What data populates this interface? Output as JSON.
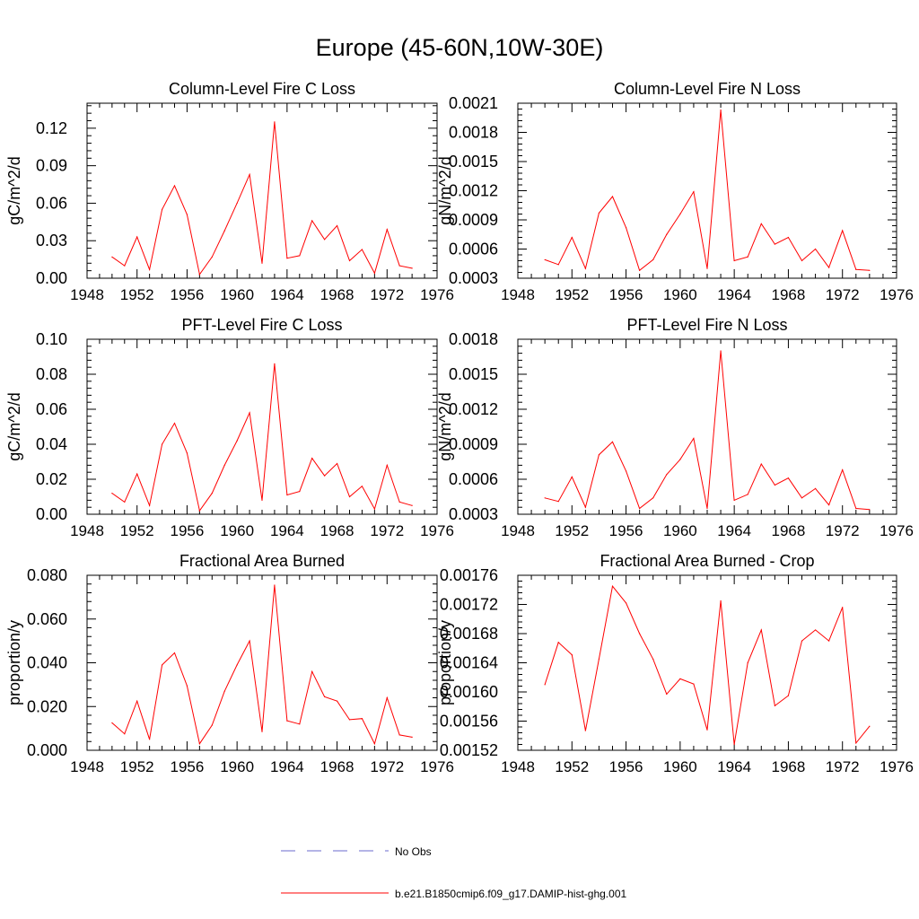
{
  "title": "Europe (45-60N,10W-30E)",
  "legend": [
    {
      "label": "No Obs",
      "color": "#6a6acd",
      "dash": true
    },
    {
      "label": "b.e21.B1850cmip6.f09_g17.DAMIP-hist-ghg.001",
      "color": "#ff0000",
      "dash": false
    }
  ],
  "chart_data": [
    {
      "type": "line",
      "title": "Column-Level Fire C Loss",
      "ylabel": "gC/m^2/d",
      "xlim": [
        1948,
        1976
      ],
      "x_ticks": [
        "1948",
        "1952",
        "1956",
        "1960",
        "1964",
        "1968",
        "1972",
        "1976"
      ],
      "ylim": [
        0,
        0.14
      ],
      "y_ticks": [
        "0.00",
        "0.03",
        "0.06",
        "0.09",
        "0.12"
      ],
      "grid": false,
      "series": [
        {
          "color": "#ff0000",
          "x": [
            1950,
            1951,
            1952,
            1953,
            1954,
            1955,
            1956,
            1957,
            1958,
            1959,
            1960,
            1961,
            1962,
            1963,
            1964,
            1965,
            1966,
            1967,
            1968,
            1969,
            1970,
            1971,
            1972,
            1973,
            1974
          ],
          "y": [
            0.017,
            0.01,
            0.033,
            0.007,
            0.055,
            0.074,
            0.051,
            0.003,
            0.017,
            0.038,
            0.06,
            0.083,
            0.012,
            0.125,
            0.016,
            0.018,
            0.046,
            0.031,
            0.042,
            0.014,
            0.023,
            0.004,
            0.039,
            0.01,
            0.008
          ]
        }
      ]
    },
    {
      "type": "line",
      "title": "Column-Level Fire N Loss",
      "ylabel": "gN/m^2/d",
      "xlim": [
        1948,
        1976
      ],
      "x_ticks": [
        "1948",
        "1952",
        "1956",
        "1960",
        "1964",
        "1968",
        "1972",
        "1976"
      ],
      "ylim": [
        0.0003,
        0.0021
      ],
      "y_ticks": [
        "0.0003",
        "0.0006",
        "0.0009",
        "0.0012",
        "0.0015",
        "0.0018",
        "0.0021"
      ],
      "grid": false,
      "series": [
        {
          "color": "#ff0000",
          "x": [
            1950,
            1951,
            1952,
            1953,
            1954,
            1955,
            1956,
            1957,
            1958,
            1959,
            1960,
            1961,
            1962,
            1963,
            1964,
            1965,
            1966,
            1967,
            1968,
            1969,
            1970,
            1971,
            1972,
            1973,
            1974
          ],
          "y": [
            0.00049,
            0.00044,
            0.00072,
            0.0004,
            0.00097,
            0.00114,
            0.00082,
            0.00038,
            0.00049,
            0.00075,
            0.00096,
            0.00119,
            0.0004,
            0.00203,
            0.00048,
            0.00052,
            0.00086,
            0.00065,
            0.00072,
            0.00048,
            0.0006,
            0.00041,
            0.00079,
            0.00039,
            0.00038
          ]
        }
      ]
    },
    {
      "type": "line",
      "title": "PFT-Level Fire C Loss",
      "ylabel": "gC/m^2/d",
      "xlim": [
        1948,
        1976
      ],
      "x_ticks": [
        "1948",
        "1952",
        "1956",
        "1960",
        "1964",
        "1968",
        "1972",
        "1976"
      ],
      "ylim": [
        0,
        0.1
      ],
      "y_ticks": [
        "0.00",
        "0.02",
        "0.04",
        "0.06",
        "0.08",
        "0.10"
      ],
      "grid": false,
      "series": [
        {
          "color": "#ff0000",
          "x": [
            1950,
            1951,
            1952,
            1953,
            1954,
            1955,
            1956,
            1957,
            1958,
            1959,
            1960,
            1961,
            1962,
            1963,
            1964,
            1965,
            1966,
            1967,
            1968,
            1969,
            1970,
            1971,
            1972,
            1973,
            1974
          ],
          "y": [
            0.012,
            0.007,
            0.023,
            0.005,
            0.04,
            0.052,
            0.035,
            0.002,
            0.012,
            0.028,
            0.042,
            0.058,
            0.008,
            0.086,
            0.011,
            0.013,
            0.032,
            0.022,
            0.029,
            0.01,
            0.016,
            0.003,
            0.028,
            0.007,
            0.005
          ]
        }
      ]
    },
    {
      "type": "line",
      "title": "PFT-Level Fire N Loss",
      "ylabel": "gN/m^2/d",
      "xlim": [
        1948,
        1976
      ],
      "x_ticks": [
        "1948",
        "1952",
        "1956",
        "1960",
        "1964",
        "1968",
        "1972",
        "1976"
      ],
      "ylim": [
        0.0003,
        0.0018
      ],
      "y_ticks": [
        "0.0003",
        "0.0006",
        "0.0009",
        "0.0012",
        "0.0015",
        "0.0018"
      ],
      "grid": false,
      "series": [
        {
          "color": "#ff0000",
          "x": [
            1950,
            1951,
            1952,
            1953,
            1954,
            1955,
            1956,
            1957,
            1958,
            1959,
            1960,
            1961,
            1962,
            1963,
            1964,
            1965,
            1966,
            1967,
            1968,
            1969,
            1970,
            1971,
            1972,
            1973,
            1974
          ],
          "y": [
            0.00044,
            0.00041,
            0.00062,
            0.00036,
            0.00081,
            0.00092,
            0.00067,
            0.00035,
            0.00044,
            0.00064,
            0.00077,
            0.00095,
            0.00035,
            0.0017,
            0.00042,
            0.00047,
            0.00073,
            0.00055,
            0.00061,
            0.00044,
            0.00052,
            0.00038,
            0.00068,
            0.00035,
            0.00034
          ]
        }
      ]
    },
    {
      "type": "line",
      "title": "Fractional Area Burned",
      "ylabel": "proportion/y",
      "xlim": [
        1948,
        1976
      ],
      "x_ticks": [
        "1948",
        "1952",
        "1956",
        "1960",
        "1964",
        "1968",
        "1972",
        "1976"
      ],
      "ylim": [
        0,
        0.08
      ],
      "y_ticks": [
        "0.000",
        "0.020",
        "0.040",
        "0.060",
        "0.080"
      ],
      "grid": false,
      "series": [
        {
          "color": "#ff0000",
          "x": [
            1950,
            1951,
            1952,
            1953,
            1954,
            1955,
            1956,
            1957,
            1958,
            1959,
            1960,
            1961,
            1962,
            1963,
            1964,
            1965,
            1966,
            1967,
            1968,
            1969,
            1970,
            1971,
            1972,
            1973,
            1974
          ],
          "y": [
            0.0125,
            0.0075,
            0.0225,
            0.005,
            0.039,
            0.0445,
            0.0295,
            0.003,
            0.0115,
            0.027,
            0.039,
            0.05,
            0.0085,
            0.0755,
            0.0135,
            0.012,
            0.036,
            0.0245,
            0.0225,
            0.014,
            0.0145,
            0.003,
            0.024,
            0.007,
            0.006
          ]
        }
      ]
    },
    {
      "type": "line",
      "title": "Fractional Area Burned - Crop",
      "ylabel": "proportion/y",
      "xlim": [
        1948,
        1976
      ],
      "x_ticks": [
        "1948",
        "1952",
        "1956",
        "1960",
        "1964",
        "1968",
        "1972",
        "1976"
      ],
      "ylim": [
        0.00152,
        0.00176
      ],
      "y_ticks": [
        "0.00152",
        "0.00156",
        "0.00160",
        "0.00164",
        "0.00168",
        "0.00172",
        "0.00176"
      ],
      "grid": false,
      "series": [
        {
          "color": "#ff0000",
          "x": [
            1950,
            1951,
            1952,
            1953,
            1954,
            1955,
            1956,
            1957,
            1958,
            1959,
            1960,
            1961,
            1962,
            1963,
            1964,
            1965,
            1966,
            1967,
            1968,
            1969,
            1970,
            1971,
            1972,
            1973,
            1974
          ],
          "y": [
            0.00161,
            0.001668,
            0.001651,
            0.001547,
            0.001645,
            0.001745,
            0.001722,
            0.00168,
            0.001645,
            0.001597,
            0.001618,
            0.001611,
            0.001548,
            0.001725,
            0.001528,
            0.00164,
            0.001685,
            0.001581,
            0.001595,
            0.00167,
            0.001685,
            0.00167,
            0.001716,
            0.00153,
            0.001553
          ]
        }
      ]
    }
  ]
}
